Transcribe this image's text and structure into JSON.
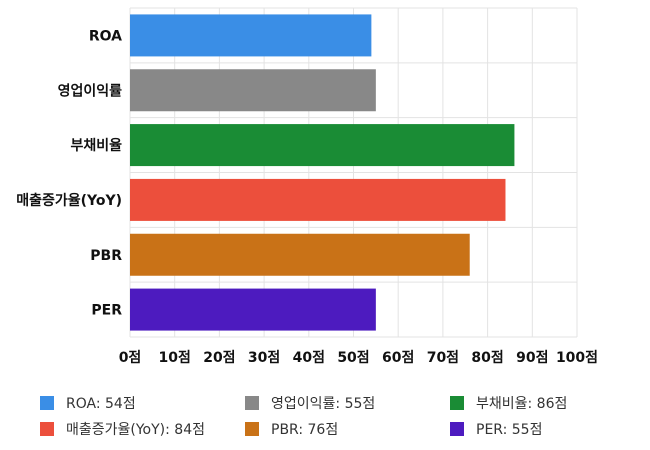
{
  "chart_data": {
    "type": "bar",
    "orientation": "horizontal",
    "categories": [
      "ROA",
      "영업이익률",
      "부채비율",
      "매출증가율(YoY)",
      "PBR",
      "PER"
    ],
    "values": [
      54,
      55,
      86,
      84,
      76,
      55
    ],
    "colors": [
      "#3a8ee6",
      "#888888",
      "#1a8c35",
      "#ec4f3c",
      "#c97217",
      "#4d1bbf"
    ],
    "xlim": [
      0,
      100
    ],
    "x_ticks": [
      0,
      10,
      20,
      30,
      40,
      50,
      60,
      70,
      80,
      90,
      100
    ],
    "x_tick_suffix": "점",
    "x_tick_labels": [
      "0점",
      "10점",
      "20점",
      "30점",
      "40점",
      "50점",
      "60점",
      "70점",
      "80점",
      "90점",
      "100점"
    ],
    "grid": true,
    "legend_position": "bottom",
    "legend": [
      "ROA: 54점",
      "영업이익률: 55점",
      "부채비율: 86점",
      "매출증가율(YoY): 84점",
      "PBR: 76점",
      "PER: 55점"
    ]
  }
}
